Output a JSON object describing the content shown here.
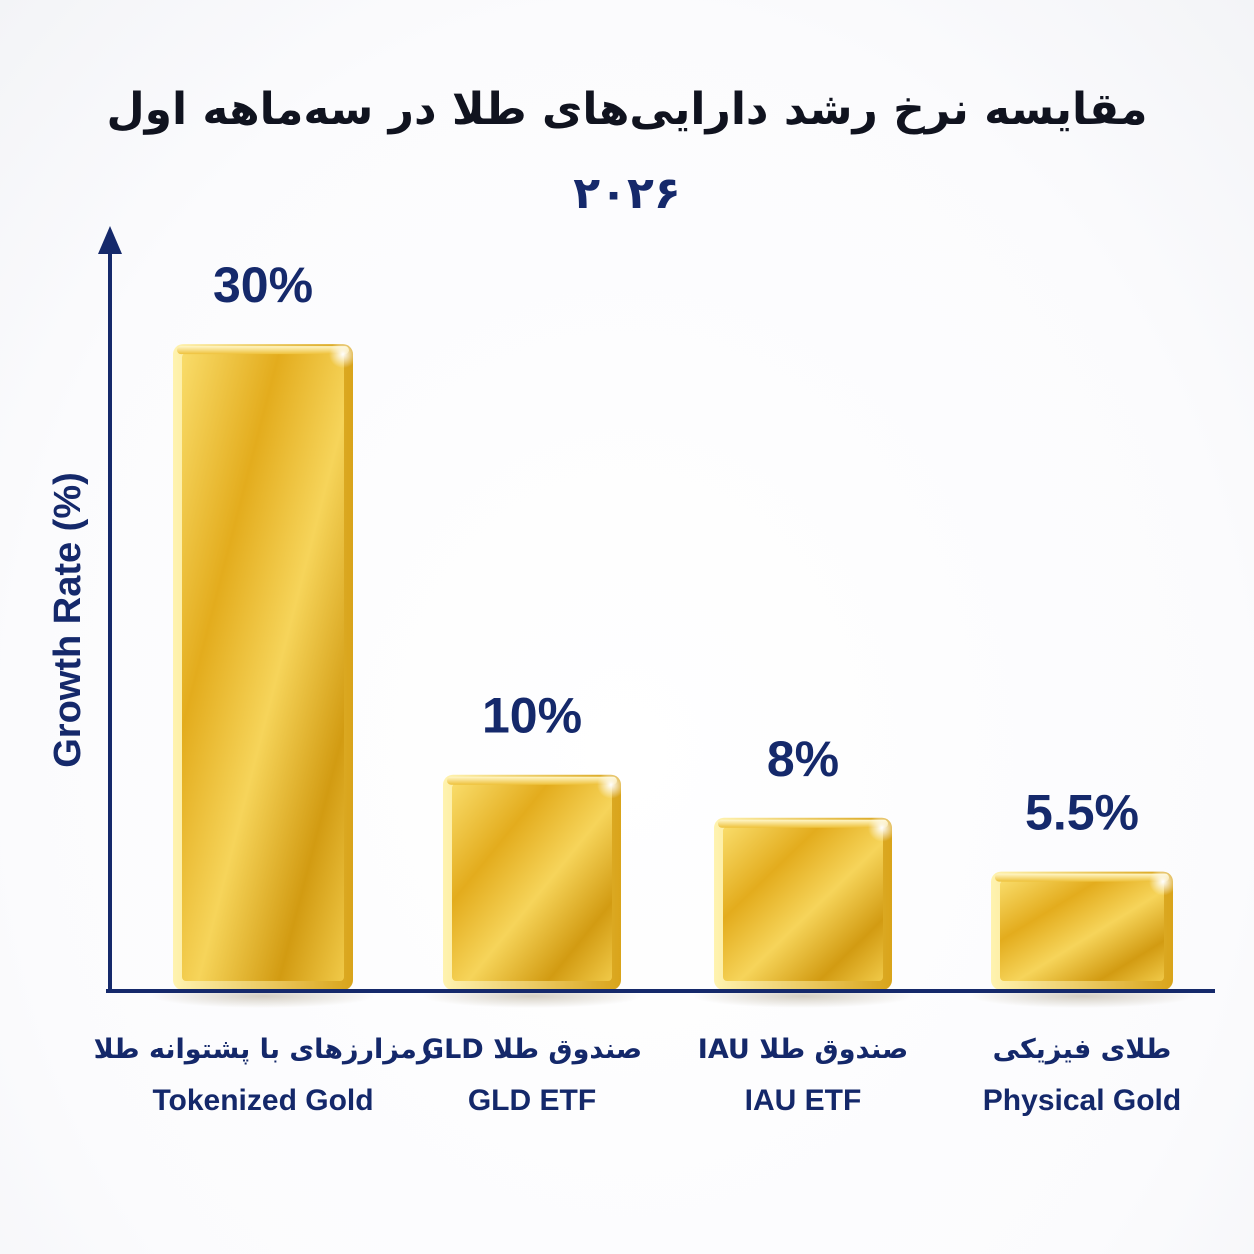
{
  "title": {
    "text": "مقایسه نرخ رشد دارایی‌های طلا در سه‌ماهه اول",
    "year": "۲۰۲۶"
  },
  "colors": {
    "axis": "#15296b",
    "label": "#14286a",
    "gold_light": "#fbe27a",
    "gold_mid": "#e8b820",
    "gold_dark": "#b8860b"
  },
  "chart_data": {
    "type": "bar",
    "title": "مقایسه نرخ رشد دارایی‌های طلا در سه‌ماهه اول ۲۰۲۶",
    "ylabel": "Growth Rate (%)",
    "xlabel": "",
    "ylim": [
      0,
      36
    ],
    "grid": false,
    "legend": "none",
    "categories": [
      {
        "fa": "رمزارزهای با پشتوانه طلا",
        "en": "Tokenized Gold"
      },
      {
        "fa": "صندوق طلا GLD",
        "en": "GLD ETF"
      },
      {
        "fa": "صندوق طلا IAU",
        "en": "IAU ETF"
      },
      {
        "fa": "طلای فیزیکی",
        "en": "Physical Gold"
      }
    ],
    "values": [
      30,
      10,
      8,
      5.5
    ],
    "value_labels": [
      "30%",
      "10%",
      "8%",
      "5.5%"
    ]
  }
}
